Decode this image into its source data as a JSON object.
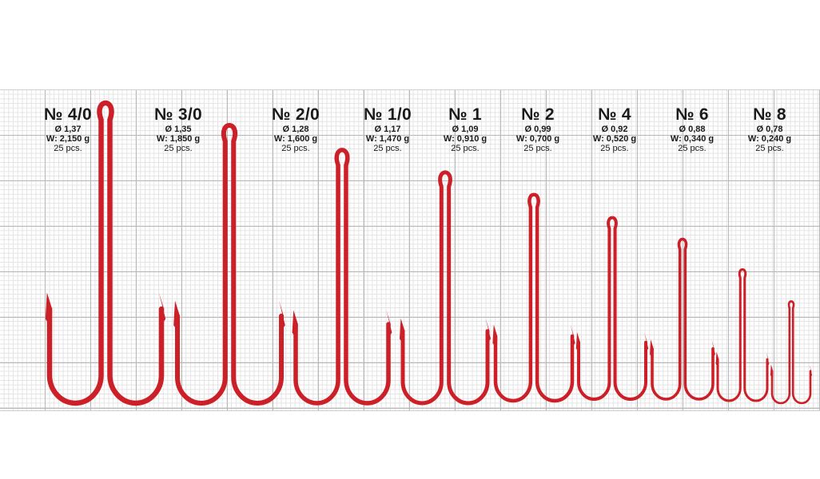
{
  "colors": {
    "hook": "#cc1f27",
    "hook_edge": "#9e151b",
    "grid_major": "#b8b8b8",
    "grid_minor": "#e3e3e3"
  },
  "hooks": [
    {
      "size": "№ 4/0",
      "diameter": "Ø 1,37",
      "weight": "W: 2,150 g",
      "quantity": "25 pcs."
    },
    {
      "size": "№ 3/0",
      "diameter": "Ø 1,35",
      "weight": "W: 1,850 g",
      "quantity": "25 pcs."
    },
    {
      "size": "№ 2/0",
      "diameter": "Ø 1,28",
      "weight": "W: 1,600 g",
      "quantity": "25 pcs."
    },
    {
      "size": "№ 1/0",
      "diameter": "Ø 1,17",
      "weight": "W: 1,470 g",
      "quantity": "25 pcs."
    },
    {
      "size": "№ 1",
      "diameter": "Ø 1,09",
      "weight": "W: 0,910 g",
      "quantity": "25 pcs."
    },
    {
      "size": "№ 2",
      "diameter": "Ø 0,99",
      "weight": "W: 0,700 g",
      "quantity": "25 pcs."
    },
    {
      "size": "№ 4",
      "diameter": "Ø 0,92",
      "weight": "W: 0,520 g",
      "quantity": "25 pcs."
    },
    {
      "size": "№ 6",
      "diameter": "Ø 0,88",
      "weight": "W: 0,340 g",
      "quantity": "25 pcs."
    },
    {
      "size": "№ 8",
      "diameter": "Ø 0,78",
      "weight": "W: 0,240 g",
      "quantity": "25 pcs."
    }
  ]
}
